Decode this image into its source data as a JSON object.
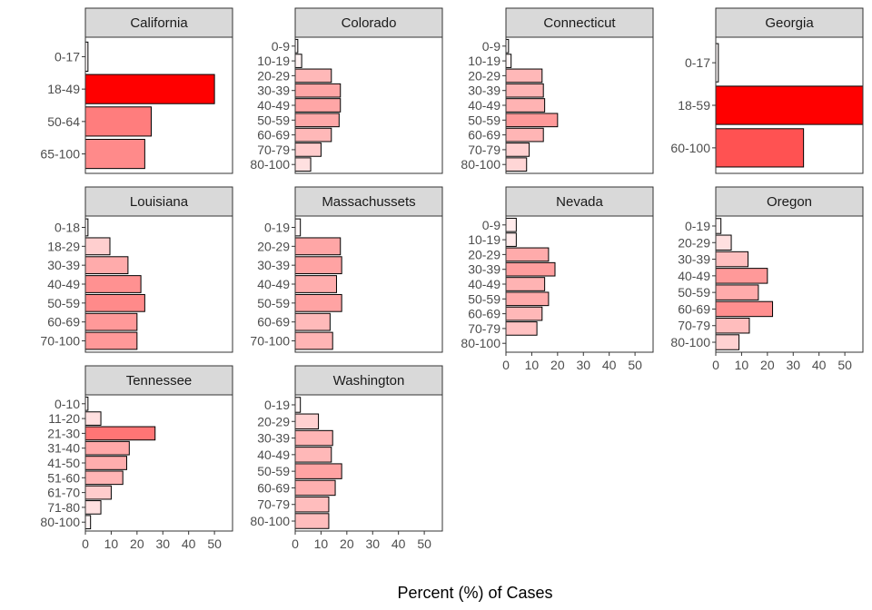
{
  "figure": {
    "xlabel": "Percent (%) of Cases",
    "xlim": [
      0,
      57
    ],
    "xticks": [
      0,
      10,
      20,
      30,
      40,
      50
    ],
    "color_low": "#ffffff",
    "color_high": "#ff0000",
    "color_max_value": 50
  },
  "chart_data": [
    {
      "type": "bar",
      "orientation": "horizontal",
      "title": "California",
      "categories": [
        "0-17",
        "18-49",
        "50-64",
        "65-100"
      ],
      "values": [
        1,
        50,
        25.5,
        23
      ]
    },
    {
      "type": "bar",
      "orientation": "horizontal",
      "title": "Colorado",
      "categories": [
        "0-9",
        "10-19",
        "20-29",
        "30-39",
        "40-49",
        "50-59",
        "60-69",
        "70-79",
        "80-100"
      ],
      "values": [
        1,
        2.5,
        14,
        17.5,
        17.5,
        17,
        14,
        10,
        6
      ]
    },
    {
      "type": "bar",
      "orientation": "horizontal",
      "title": "Connecticut",
      "categories": [
        "0-9",
        "10-19",
        "20-29",
        "30-39",
        "40-49",
        "50-59",
        "60-69",
        "70-79",
        "80-100"
      ],
      "values": [
        1,
        2,
        14,
        14.5,
        15,
        20,
        14.5,
        9,
        8
      ]
    },
    {
      "type": "bar",
      "orientation": "horizontal",
      "title": "Georgia",
      "categories": [
        "0-17",
        "18-59",
        "60-100"
      ],
      "values": [
        1,
        59,
        34
      ]
    },
    {
      "type": "bar",
      "orientation": "horizontal",
      "title": "Louisiana",
      "categories": [
        "0-18",
        "18-29",
        "30-39",
        "40-49",
        "50-59",
        "60-69",
        "70-100"
      ],
      "values": [
        1,
        9.5,
        16.5,
        21.5,
        23,
        20,
        20
      ]
    },
    {
      "type": "bar",
      "orientation": "horizontal",
      "title": "Massachussets",
      "categories": [
        "0-19",
        "20-29",
        "30-39",
        "40-49",
        "50-59",
        "60-69",
        "70-100"
      ],
      "values": [
        2,
        17.5,
        18,
        16,
        18,
        13.5,
        14.5
      ]
    },
    {
      "type": "bar",
      "orientation": "horizontal",
      "title": "Nevada",
      "categories": [
        "0-9",
        "10-19",
        "20-29",
        "30-39",
        "40-49",
        "50-59",
        "60-69",
        "70-79",
        "80-100"
      ],
      "values": [
        4,
        4,
        16.5,
        19,
        15,
        16.5,
        14,
        12,
        0
      ]
    },
    {
      "type": "bar",
      "orientation": "horizontal",
      "title": "Oregon",
      "categories": [
        "0-19",
        "20-29",
        "30-39",
        "40-49",
        "50-59",
        "60-69",
        "70-79",
        "80-100"
      ],
      "values": [
        2,
        6,
        12.5,
        20,
        16.5,
        22,
        13,
        9
      ]
    },
    {
      "type": "bar",
      "orientation": "horizontal",
      "title": "Tennessee",
      "categories": [
        "0-10",
        "11-20",
        "21-30",
        "31-40",
        "41-50",
        "51-60",
        "61-70",
        "71-80",
        "80-100"
      ],
      "values": [
        1,
        6,
        27,
        17,
        16,
        14.5,
        10,
        6,
        2
      ]
    },
    {
      "type": "bar",
      "orientation": "horizontal",
      "title": "Washington",
      "categories": [
        "0-19",
        "20-29",
        "30-39",
        "40-49",
        "50-59",
        "60-69",
        "70-79",
        "80-100"
      ],
      "values": [
        2,
        9,
        14.5,
        14,
        18,
        15.5,
        13,
        13
      ]
    }
  ]
}
